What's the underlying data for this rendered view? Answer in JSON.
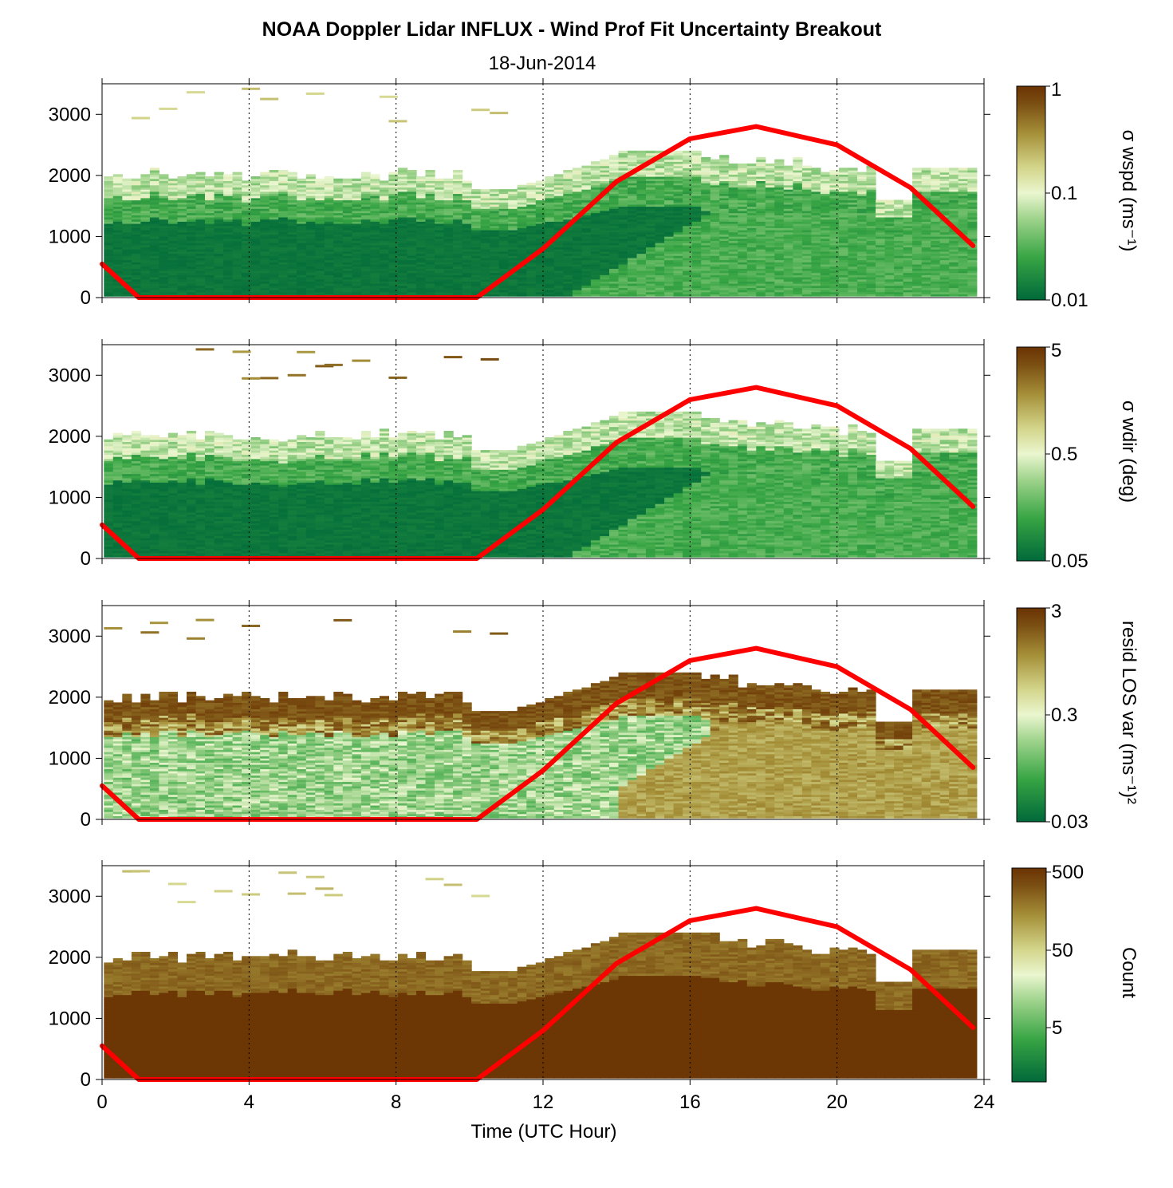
{
  "title": "NOAA Doppler Lidar INFLUX - Wind Prof Fit Uncertainty Breakout",
  "subtitle": "18-Jun-2014",
  "xlabel": "Time (UTC Hour)",
  "colors": {
    "solar_curve": "#ff0000",
    "colormap": [
      "#00693a",
      "#38a544",
      "#9fd38c",
      "#eaf6cf",
      "#d3d58a",
      "#a58f38",
      "#7a4e12",
      "#6b3303"
    ]
  },
  "chart_data": [
    {
      "type": "heatmap",
      "panel": "wspd",
      "colorbar_label": "σ wspd (ms⁻¹)",
      "colorbar_scale": "log",
      "colorbar_range": [
        0.01,
        1
      ],
      "colorbar_ticks": [
        "1",
        "0.1",
        "0.01"
      ],
      "x": "Time (UTC Hour)",
      "xlim": [
        0,
        24
      ],
      "x_ticks": [
        "0",
        "4",
        "8",
        "12",
        "16",
        "20",
        "24"
      ],
      "y_ticks": [
        "0",
        "1000",
        "2000",
        "3000"
      ],
      "ylim": [
        0,
        3500
      ],
      "vertical_grid": "dotted every 4 h",
      "solar_curve": [
        [
          0,
          550
        ],
        [
          1,
          0
        ],
        [
          10.2,
          0
        ],
        [
          12,
          800
        ],
        [
          14,
          1900
        ],
        [
          16,
          2600
        ],
        [
          17.8,
          2800
        ],
        [
          20,
          2500
        ],
        [
          22,
          1800
        ],
        [
          23.7,
          850
        ]
      ],
      "description_levels": {
        "low_level_typical_night": 0.01,
        "afternoon_typical": 0.04,
        "top_of_profile": 0.15
      }
    },
    {
      "type": "heatmap",
      "panel": "wdir",
      "colorbar_label": "σ wdir (deg)",
      "colorbar_scale": "log",
      "colorbar_range": [
        0.05,
        5
      ],
      "colorbar_ticks": [
        "5",
        "0.5",
        "0.05"
      ],
      "x": "Time (UTC Hour)",
      "xlim": [
        0,
        24
      ],
      "y_ticks": [
        "0",
        "1000",
        "2000",
        "3000"
      ],
      "ylim": [
        0,
        3500
      ],
      "solar_curve": [
        [
          0,
          550
        ],
        [
          1,
          0
        ],
        [
          10.2,
          0
        ],
        [
          12,
          800
        ],
        [
          14,
          1900
        ],
        [
          16,
          2600
        ],
        [
          17.8,
          2800
        ],
        [
          20,
          2500
        ],
        [
          22,
          1800
        ],
        [
          23.7,
          850
        ]
      ],
      "description_levels": {
        "low_level_typical_night": 0.05,
        "afternoon_typical": 0.2,
        "top_of_profile": 0.6
      }
    },
    {
      "type": "heatmap",
      "panel": "resid",
      "colorbar_label": "resid LOS var (ms⁻¹)²",
      "colorbar_scale": "log",
      "colorbar_range": [
        0.03,
        3
      ],
      "colorbar_ticks": [
        "3",
        "0.3",
        "0.03"
      ],
      "x": "Time (UTC Hour)",
      "xlim": [
        0,
        24
      ],
      "y_ticks": [
        "0",
        "1000",
        "2000",
        "3000"
      ],
      "ylim": [
        0,
        3500
      ],
      "solar_curve": [
        [
          0,
          550
        ],
        [
          1,
          0
        ],
        [
          10.2,
          0
        ],
        [
          12,
          800
        ],
        [
          14,
          1900
        ],
        [
          16,
          2600
        ],
        [
          17.8,
          2800
        ],
        [
          20,
          2500
        ],
        [
          22,
          1800
        ],
        [
          23.7,
          850
        ]
      ],
      "description_levels": {
        "low_level_typical_night": 0.1,
        "afternoon_typical": 1.5,
        "top_of_profile": 2.5
      }
    },
    {
      "type": "heatmap",
      "panel": "count",
      "colorbar_label": "Count",
      "colorbar_scale": "log",
      "colorbar_range": [
        1,
        500
      ],
      "colorbar_ticks": [
        "500",
        "50",
        "5"
      ],
      "x": "Time (UTC Hour)",
      "xlim": [
        0,
        24
      ],
      "x_ticks": [
        "0",
        "4",
        "8",
        "12",
        "16",
        "20",
        "24"
      ],
      "y_ticks": [
        "0",
        "1000",
        "2000",
        "3000"
      ],
      "ylim": [
        0,
        3500
      ],
      "solar_curve": [
        [
          0,
          550
        ],
        [
          1,
          0
        ],
        [
          10.2,
          0
        ],
        [
          12,
          800
        ],
        [
          14,
          1900
        ],
        [
          16,
          2600
        ],
        [
          17.8,
          2800
        ],
        [
          20,
          2500
        ],
        [
          22,
          1800
        ],
        [
          23.7,
          850
        ]
      ],
      "description_levels": {
        "low_level_typical": 500,
        "top_of_profile": 150
      }
    }
  ]
}
